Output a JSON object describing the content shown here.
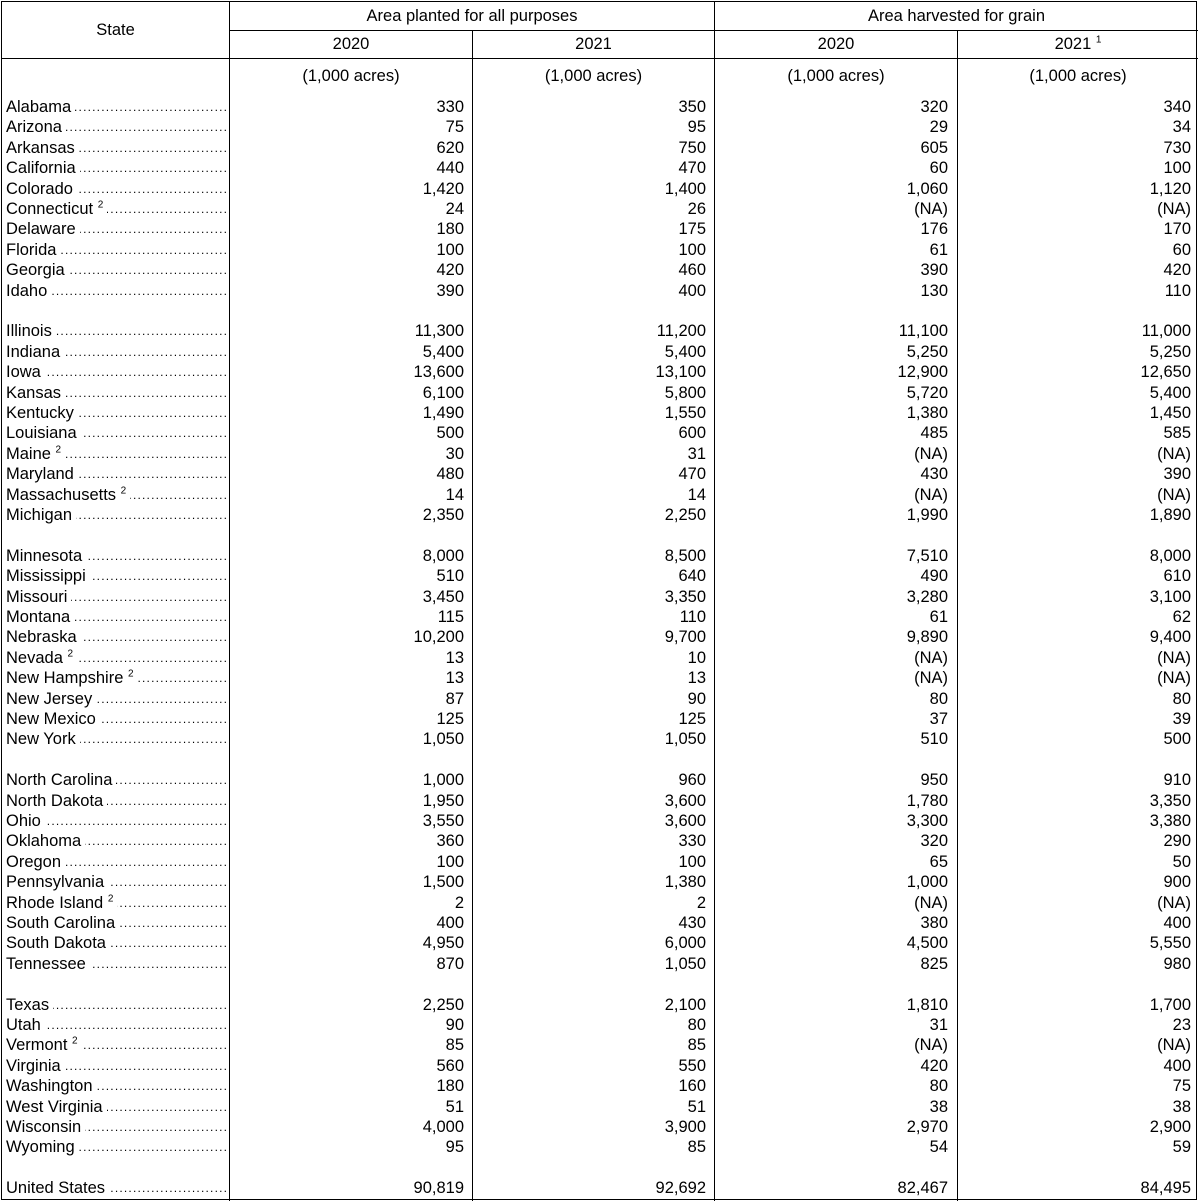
{
  "header": {
    "state": "State",
    "group_planted": "Area planted for all purposes",
    "group_harvested": "Area harvested for grain",
    "years": [
      "2020",
      "2021",
      "2020",
      "2021"
    ],
    "year4_footnote": "1",
    "units": [
      "(1,000 acres)",
      "(1,000 acres)",
      "(1,000 acres)",
      "(1,000 acres)"
    ]
  },
  "groups": [
    [
      {
        "state": "Alabama",
        "fn": "",
        "v": [
          "330",
          "350",
          "320",
          "340"
        ]
      },
      {
        "state": "Arizona",
        "fn": "",
        "v": [
          "75",
          "95",
          "29",
          "34"
        ]
      },
      {
        "state": "Arkansas",
        "fn": "",
        "v": [
          "620",
          "750",
          "605",
          "730"
        ]
      },
      {
        "state": "California",
        "fn": "",
        "v": [
          "440",
          "470",
          "60",
          "100"
        ]
      },
      {
        "state": "Colorado",
        "fn": "",
        "v": [
          "1,420",
          "1,400",
          "1,060",
          "1,120"
        ]
      },
      {
        "state": "Connecticut",
        "fn": "2",
        "v": [
          "24",
          "26",
          "(NA)",
          "(NA)"
        ]
      },
      {
        "state": "Delaware",
        "fn": "",
        "v": [
          "180",
          "175",
          "176",
          "170"
        ]
      },
      {
        "state": "Florida",
        "fn": "",
        "v": [
          "100",
          "100",
          "61",
          "60"
        ]
      },
      {
        "state": "Georgia",
        "fn": "",
        "v": [
          "420",
          "460",
          "390",
          "420"
        ]
      },
      {
        "state": "Idaho",
        "fn": "",
        "v": [
          "390",
          "400",
          "130",
          "110"
        ]
      }
    ],
    [
      {
        "state": "Illinois",
        "fn": "",
        "v": [
          "11,300",
          "11,200",
          "11,100",
          "11,000"
        ]
      },
      {
        "state": "Indiana",
        "fn": "",
        "v": [
          "5,400",
          "5,400",
          "5,250",
          "5,250"
        ]
      },
      {
        "state": "Iowa",
        "fn": "",
        "v": [
          "13,600",
          "13,100",
          "12,900",
          "12,650"
        ]
      },
      {
        "state": "Kansas",
        "fn": "",
        "v": [
          "6,100",
          "5,800",
          "5,720",
          "5,400"
        ]
      },
      {
        "state": "Kentucky",
        "fn": "",
        "v": [
          "1,490",
          "1,550",
          "1,380",
          "1,450"
        ]
      },
      {
        "state": "Louisiana",
        "fn": "",
        "v": [
          "500",
          "600",
          "485",
          "585"
        ]
      },
      {
        "state": "Maine",
        "fn": "2",
        "v": [
          "30",
          "31",
          "(NA)",
          "(NA)"
        ]
      },
      {
        "state": "Maryland",
        "fn": "",
        "v": [
          "480",
          "470",
          "430",
          "390"
        ]
      },
      {
        "state": "Massachusetts",
        "fn": "2",
        "v": [
          "14",
          "14",
          "(NA)",
          "(NA)"
        ]
      },
      {
        "state": "Michigan",
        "fn": "",
        "v": [
          "2,350",
          "2,250",
          "1,990",
          "1,890"
        ]
      }
    ],
    [
      {
        "state": "Minnesota",
        "fn": "",
        "v": [
          "8,000",
          "8,500",
          "7,510",
          "8,000"
        ]
      },
      {
        "state": "Mississippi",
        "fn": "",
        "v": [
          "510",
          "640",
          "490",
          "610"
        ]
      },
      {
        "state": "Missouri",
        "fn": "",
        "v": [
          "3,450",
          "3,350",
          "3,280",
          "3,100"
        ]
      },
      {
        "state": "Montana",
        "fn": "",
        "v": [
          "115",
          "110",
          "61",
          "62"
        ]
      },
      {
        "state": "Nebraska",
        "fn": "",
        "v": [
          "10,200",
          "9,700",
          "9,890",
          "9,400"
        ]
      },
      {
        "state": "Nevada",
        "fn": "2",
        "v": [
          "13",
          "10",
          "(NA)",
          "(NA)"
        ]
      },
      {
        "state": "New Hampshire",
        "fn": "2",
        "v": [
          "13",
          "13",
          "(NA)",
          "(NA)"
        ]
      },
      {
        "state": "New Jersey",
        "fn": "",
        "v": [
          "87",
          "90",
          "80",
          "80"
        ]
      },
      {
        "state": "New Mexico",
        "fn": "",
        "v": [
          "125",
          "125",
          "37",
          "39"
        ]
      },
      {
        "state": "New York",
        "fn": "",
        "v": [
          "1,050",
          "1,050",
          "510",
          "500"
        ]
      }
    ],
    [
      {
        "state": "North Carolina",
        "fn": "",
        "v": [
          "1,000",
          "960",
          "950",
          "910"
        ]
      },
      {
        "state": "North Dakota",
        "fn": "",
        "v": [
          "1,950",
          "3,600",
          "1,780",
          "3,350"
        ]
      },
      {
        "state": "Ohio",
        "fn": "",
        "v": [
          "3,550",
          "3,600",
          "3,300",
          "3,380"
        ]
      },
      {
        "state": "Oklahoma",
        "fn": "",
        "v": [
          "360",
          "330",
          "320",
          "290"
        ]
      },
      {
        "state": "Oregon",
        "fn": "",
        "v": [
          "100",
          "100",
          "65",
          "50"
        ]
      },
      {
        "state": "Pennsylvania",
        "fn": "",
        "v": [
          "1,500",
          "1,380",
          "1,000",
          "900"
        ]
      },
      {
        "state": "Rhode Island",
        "fn": "2",
        "v": [
          "2",
          "2",
          "(NA)",
          "(NA)"
        ]
      },
      {
        "state": "South Carolina",
        "fn": "",
        "v": [
          "400",
          "430",
          "380",
          "400"
        ]
      },
      {
        "state": "South Dakota",
        "fn": "",
        "v": [
          "4,950",
          "6,000",
          "4,500",
          "5,550"
        ]
      },
      {
        "state": "Tennessee",
        "fn": "",
        "v": [
          "870",
          "1,050",
          "825",
          "980"
        ]
      }
    ],
    [
      {
        "state": "Texas",
        "fn": "",
        "v": [
          "2,250",
          "2,100",
          "1,810",
          "1,700"
        ]
      },
      {
        "state": "Utah",
        "fn": "",
        "v": [
          "90",
          "80",
          "31",
          "23"
        ]
      },
      {
        "state": "Vermont",
        "fn": "2",
        "v": [
          "85",
          "85",
          "(NA)",
          "(NA)"
        ]
      },
      {
        "state": "Virginia",
        "fn": "",
        "v": [
          "560",
          "550",
          "420",
          "400"
        ]
      },
      {
        "state": "Washington",
        "fn": "",
        "v": [
          "180",
          "160",
          "80",
          "75"
        ]
      },
      {
        "state": "West Virginia",
        "fn": "",
        "v": [
          "51",
          "51",
          "38",
          "38"
        ]
      },
      {
        "state": "Wisconsin",
        "fn": "",
        "v": [
          "4,000",
          "3,900",
          "2,970",
          "2,900"
        ]
      },
      {
        "state": "Wyoming",
        "fn": "",
        "v": [
          "95",
          "85",
          "54",
          "59"
        ]
      }
    ],
    [
      {
        "state": "United States",
        "fn": "",
        "v": [
          "90,819",
          "92,692",
          "82,467",
          "84,495"
        ]
      }
    ]
  ]
}
